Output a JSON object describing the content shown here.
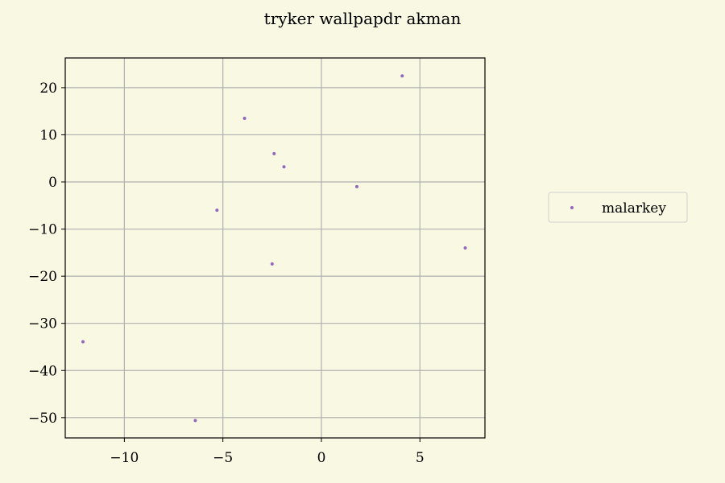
{
  "chart_data": {
    "type": "scatter",
    "title": "tryker wallpapdr akman",
    "xlabel": "",
    "ylabel": "",
    "xlim": [
      -13,
      8.3
    ],
    "ylim": [
      -54.3,
      26.3
    ],
    "xticks": [
      -10,
      -5,
      0,
      5
    ],
    "yticks": [
      20,
      10,
      0,
      -10,
      -20,
      -30,
      -40,
      -50
    ],
    "grid": true,
    "legend_position": "right",
    "series": [
      {
        "name": "malarkey",
        "color": "#9467bd",
        "points": [
          {
            "x": 4.1,
            "y": 22.5
          },
          {
            "x": -3.9,
            "y": 13.5
          },
          {
            "x": -2.4,
            "y": 6.0
          },
          {
            "x": -1.9,
            "y": 3.2
          },
          {
            "x": 1.8,
            "y": -1.0
          },
          {
            "x": -5.3,
            "y": -6.0
          },
          {
            "x": 7.3,
            "y": -14.0
          },
          {
            "x": -2.5,
            "y": -17.4
          },
          {
            "x": -12.1,
            "y": -33.9
          },
          {
            "x": -6.4,
            "y": -50.6
          }
        ]
      }
    ]
  },
  "colors": {
    "background": "#f9f8e3",
    "grid": "#b0b0b0",
    "series": "#9467bd"
  }
}
